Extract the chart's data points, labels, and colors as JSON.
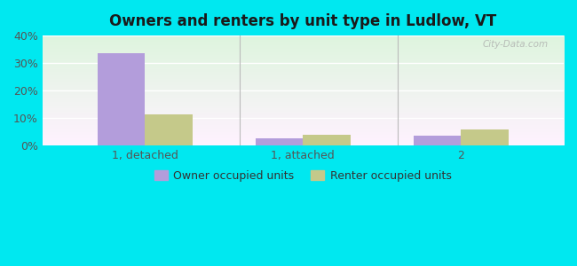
{
  "title": "Owners and renters by unit type in Ludlow, VT",
  "categories": [
    "1, detached",
    "1, attached",
    "2"
  ],
  "owner_values": [
    33.5,
    2.5,
    3.5
  ],
  "renter_values": [
    11.5,
    4.0,
    6.0
  ],
  "owner_color": "#b39ddb",
  "renter_color": "#c5c98a",
  "ylim": [
    0,
    40
  ],
  "yticks": [
    0,
    10,
    20,
    30,
    40
  ],
  "ytick_labels": [
    "0%",
    "10%",
    "20%",
    "30%",
    "40%"
  ],
  "outer_bg": "#00e8f0",
  "bar_width": 0.3,
  "legend_labels": [
    "Owner occupied units",
    "Renter occupied units"
  ],
  "watermark": "City-Data.com",
  "separator_color": "#bbbbbb",
  "grid_color": "#dddddd"
}
